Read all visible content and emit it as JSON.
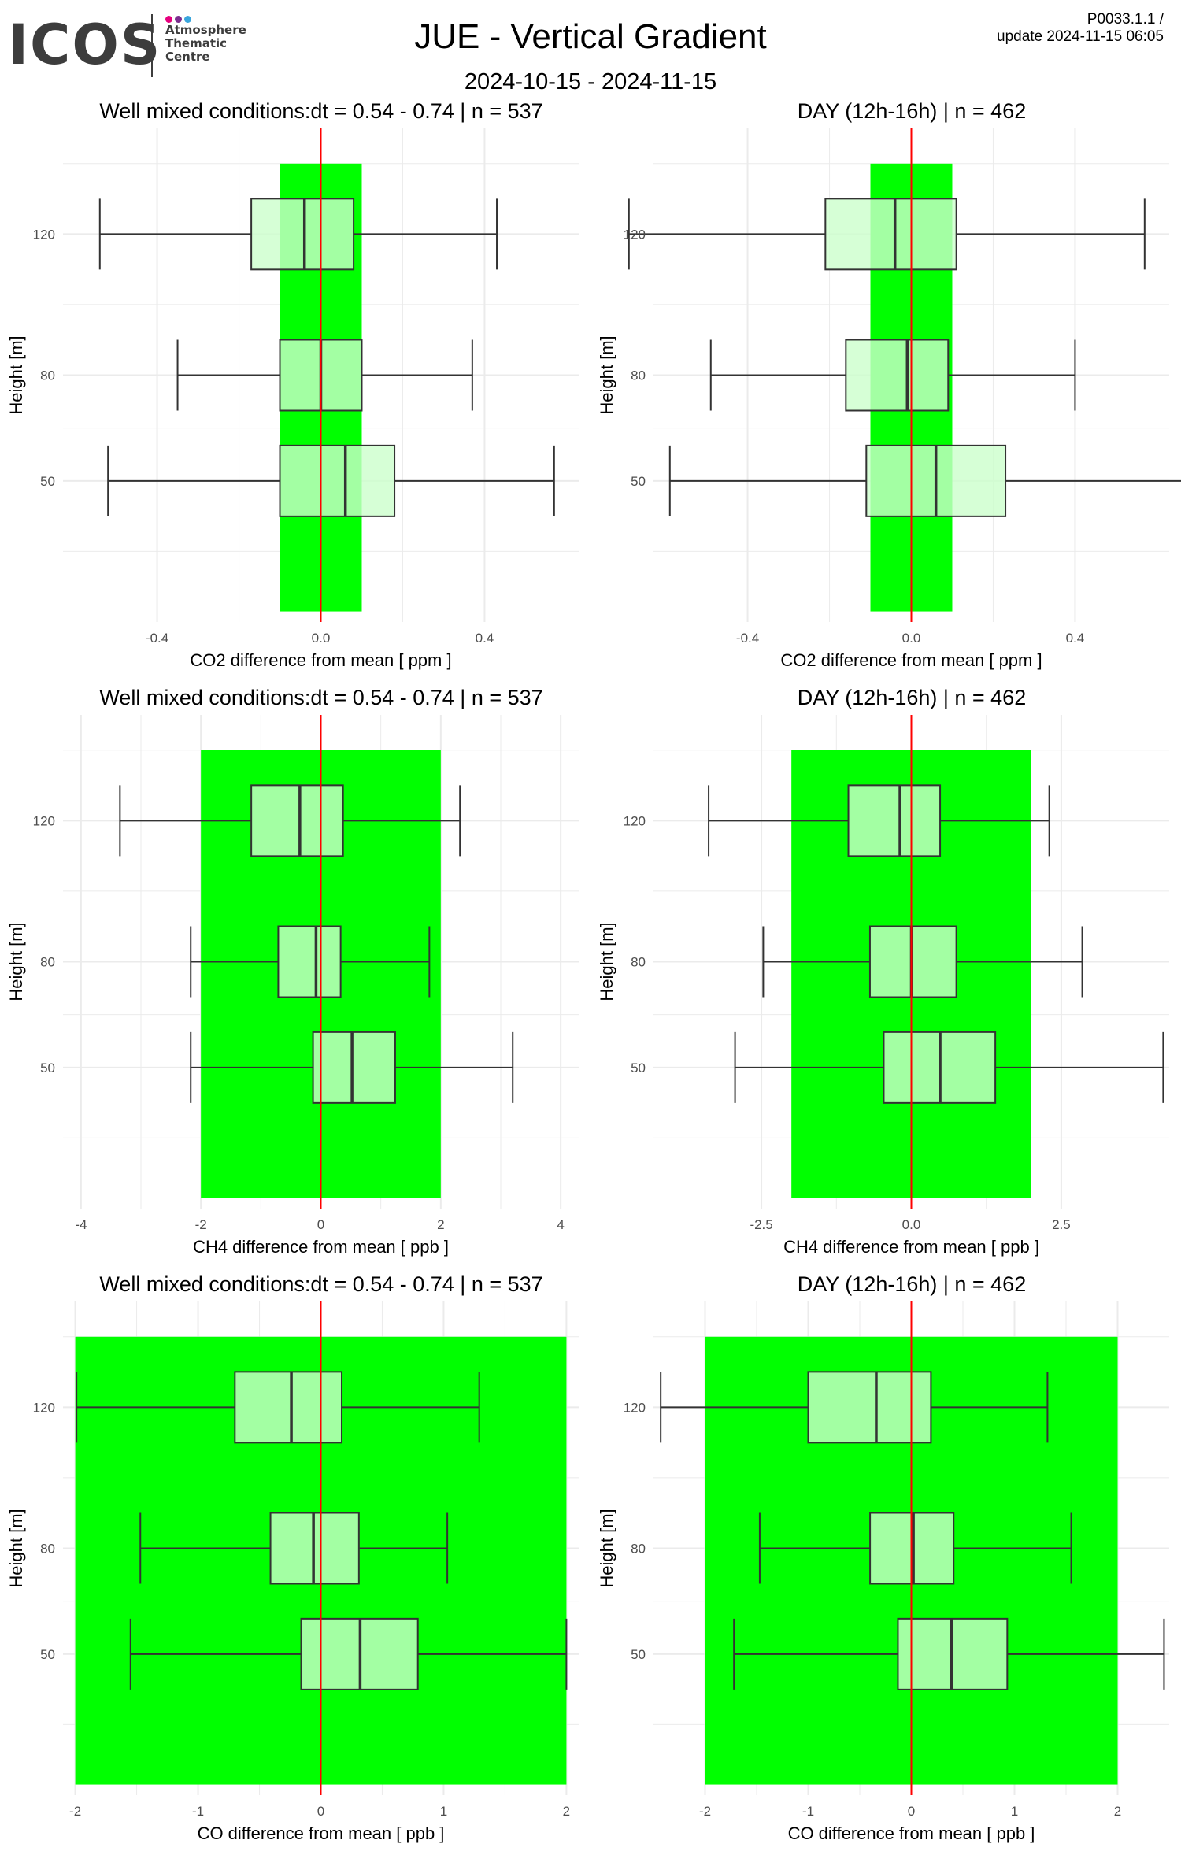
{
  "logo": {
    "word": "ICOS",
    "lines": [
      "Atmosphere",
      "Thematic",
      "Centre"
    ],
    "dot_colors": [
      "#e6007e",
      "#7b2d8e",
      "#3aa6dd"
    ]
  },
  "header": {
    "title": "JUE - Vertical Gradient",
    "date_range": "2024-10-15 - 2024-11-15",
    "version": "P0033.1.1 /",
    "update": "update  2024-11-15 06:05"
  },
  "colors": {
    "band": "#00ff00",
    "box_fill": "#ccffcc",
    "mean_line": "#ff0000",
    "grid": "#ebebeb"
  },
  "chart_data": [
    {
      "type": "boxplot",
      "title": "Well mixed conditions:dt = 0.54 - 0.74 | n = 537",
      "xlabel": "CO2  difference from mean [ ppm ]",
      "ylabel": "Height [m]",
      "xlim": [
        -0.63,
        0.63
      ],
      "xticks": [
        -0.4,
        0.0,
        0.4
      ],
      "xtick_labels": [
        "-0.4",
        "0.0",
        "0.4"
      ],
      "band": [
        -0.1,
        0.1
      ],
      "heights": [
        120,
        80,
        50
      ],
      "boxes": [
        {
          "height": 120,
          "min": -0.54,
          "q1": -0.17,
          "median": -0.04,
          "q3": 0.08,
          "max": 0.43
        },
        {
          "height": 80,
          "min": -0.35,
          "q1": -0.1,
          "median": 0.0,
          "q3": 0.1,
          "max": 0.37
        },
        {
          "height": 50,
          "min": -0.52,
          "q1": -0.1,
          "median": 0.06,
          "q3": 0.18,
          "max": 0.57
        }
      ]
    },
    {
      "type": "boxplot",
      "title": "DAY (12h-16h) | n = 462",
      "xlabel": "CO2  difference from mean [ ppm ]",
      "ylabel": "Height [m]",
      "xlim": [
        -0.63,
        0.63
      ],
      "xticks": [
        -0.4,
        0.0,
        0.4
      ],
      "xtick_labels": [
        "-0.4",
        "0.0",
        "0.4"
      ],
      "band": [
        -0.1,
        0.1
      ],
      "heights": [
        120,
        80,
        50
      ],
      "boxes": [
        {
          "height": 120,
          "min": -0.69,
          "q1": -0.21,
          "median": -0.04,
          "q3": 0.11,
          "max": 0.57
        },
        {
          "height": 80,
          "min": -0.49,
          "q1": -0.16,
          "median": -0.01,
          "q3": 0.09,
          "max": 0.4
        },
        {
          "height": 50,
          "min": -0.59,
          "q1": -0.11,
          "median": 0.06,
          "q3": 0.23,
          "max": 0.7
        }
      ]
    },
    {
      "type": "boxplot",
      "title": "Well mixed conditions:dt = 0.54 - 0.74 | n = 537",
      "xlabel": "CH4  difference from mean [ ppb ]",
      "ylabel": "Height [m]",
      "xlim": [
        -4.3,
        4.3
      ],
      "xticks": [
        -4,
        -2,
        0,
        2,
        4
      ],
      "xtick_labels": [
        "-4",
        "-2",
        "0",
        "2",
        "4"
      ],
      "band": [
        -2,
        2
      ],
      "heights": [
        120,
        80,
        50
      ],
      "boxes": [
        {
          "height": 120,
          "min": -3.35,
          "q1": -1.16,
          "median": -0.35,
          "q3": 0.37,
          "max": 2.32
        },
        {
          "height": 80,
          "min": -2.17,
          "q1": -0.71,
          "median": -0.08,
          "q3": 0.33,
          "max": 1.81
        },
        {
          "height": 50,
          "min": -2.17,
          "q1": -0.13,
          "median": 0.52,
          "q3": 1.24,
          "max": 3.2
        }
      ]
    },
    {
      "type": "boxplot",
      "title": "DAY (12h-16h) | n = 462",
      "xlabel": "CH4  difference from mean [ ppb ]",
      "ylabel": "Height [m]",
      "xlim": [
        -4.3,
        4.3
      ],
      "xticks": [
        -2.5,
        0.0,
        2.5
      ],
      "xtick_labels": [
        "-2.5",
        "0.0",
        "2.5"
      ],
      "band": [
        -2,
        2
      ],
      "heights": [
        120,
        80,
        50
      ],
      "boxes": [
        {
          "height": 120,
          "min": -3.38,
          "q1": -1.05,
          "median": -0.19,
          "q3": 0.48,
          "max": 2.3
        },
        {
          "height": 80,
          "min": -2.47,
          "q1": -0.69,
          "median": 0.0,
          "q3": 0.75,
          "max": 2.85
        },
        {
          "height": 50,
          "min": -2.94,
          "q1": -0.46,
          "median": 0.48,
          "q3": 1.4,
          "max": 4.2
        }
      ]
    },
    {
      "type": "boxplot",
      "title": "Well mixed conditions:dt = 0.54 - 0.74 | n = 537",
      "xlabel": "CO  difference from mean [ ppb ]",
      "ylabel": "Height [m]",
      "xlim": [
        -2.1,
        2.1
      ],
      "xticks": [
        -2,
        -1,
        0,
        1,
        2
      ],
      "xtick_labels": [
        "-2",
        "-1",
        "0",
        "1",
        "2"
      ],
      "band": [
        -2,
        2
      ],
      "heights": [
        120,
        80,
        50
      ],
      "boxes": [
        {
          "height": 120,
          "min": -1.99,
          "q1": -0.7,
          "median": -0.24,
          "q3": 0.17,
          "max": 1.29
        },
        {
          "height": 80,
          "min": -1.47,
          "q1": -0.41,
          "median": -0.06,
          "q3": 0.31,
          "max": 1.03
        },
        {
          "height": 50,
          "min": -1.55,
          "q1": -0.16,
          "median": 0.32,
          "q3": 0.79,
          "max": 2.0
        }
      ]
    },
    {
      "type": "boxplot",
      "title": "DAY (12h-16h) | n = 462",
      "xlabel": "CO  difference from mean [ ppb ]",
      "ylabel": "Height [m]",
      "xlim": [
        -2.5,
        2.5
      ],
      "xticks": [
        -2,
        -1,
        0,
        1,
        2
      ],
      "xtick_labels": [
        "-2",
        "-1",
        "0",
        "1",
        "2"
      ],
      "band": [
        -2,
        2
      ],
      "heights": [
        120,
        80,
        50
      ],
      "boxes": [
        {
          "height": 120,
          "min": -2.43,
          "q1": -1.0,
          "median": -0.34,
          "q3": 0.19,
          "max": 1.32
        },
        {
          "height": 80,
          "min": -1.47,
          "q1": -0.4,
          "median": 0.02,
          "q3": 0.41,
          "max": 1.55
        },
        {
          "height": 50,
          "min": -1.72,
          "q1": -0.13,
          "median": 0.39,
          "q3": 0.93,
          "max": 2.45
        }
      ]
    }
  ]
}
